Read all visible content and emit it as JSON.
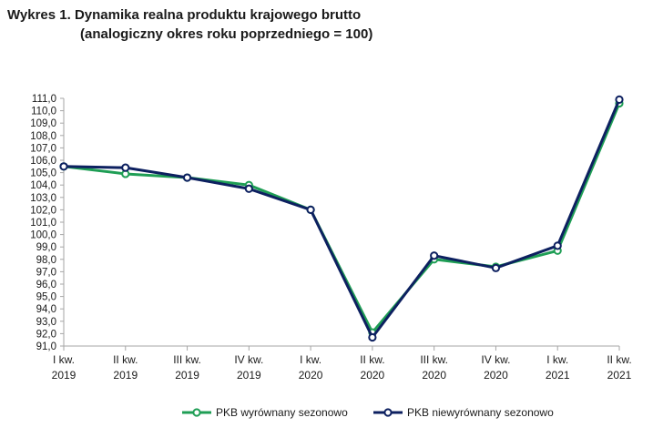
{
  "chart_data": {
    "type": "line",
    "title_line1": "Wykres 1. Dynamika realna produktu krajowego brutto",
    "title_line2": "(analogiczny okres roku poprzedniego = 100)",
    "categories": [
      [
        "I kw.",
        "2019"
      ],
      [
        "II kw.",
        "2019"
      ],
      [
        "III kw.",
        "2019"
      ],
      [
        "IV kw.",
        "2019"
      ],
      [
        "I kw.",
        "2020"
      ],
      [
        "II kw.",
        "2020"
      ],
      [
        "III kw.",
        "2020"
      ],
      [
        "IV kw.",
        "2020"
      ],
      [
        "I kw.",
        "2021"
      ],
      [
        "II kw.",
        "2021"
      ]
    ],
    "ylim": [
      91,
      111
    ],
    "ytick_step": 1,
    "ytick_labels": [
      "91,0",
      "92,0",
      "93,0",
      "94,0",
      "95,0",
      "96,0",
      "97,0",
      "98,0",
      "99,0",
      "100,0",
      "101,0",
      "102,0",
      "103,0",
      "104,0",
      "105,0",
      "106,0",
      "107,0",
      "108,0",
      "109,0",
      "110,0",
      "111,0"
    ],
    "series": [
      {
        "name": "PKB wyrównany sezonowo",
        "color": "#1f9e55",
        "values": [
          105.5,
          104.9,
          104.6,
          104.0,
          102.0,
          92.1,
          98.0,
          97.4,
          98.7,
          110.6
        ]
      },
      {
        "name": "PKB niewyrównany sezonowo",
        "color": "#0d2060",
        "values": [
          105.5,
          105.4,
          104.6,
          103.7,
          102.0,
          91.7,
          98.3,
          97.3,
          99.1,
          110.9
        ]
      }
    ],
    "legend_position": "bottom-center",
    "grid": false
  }
}
